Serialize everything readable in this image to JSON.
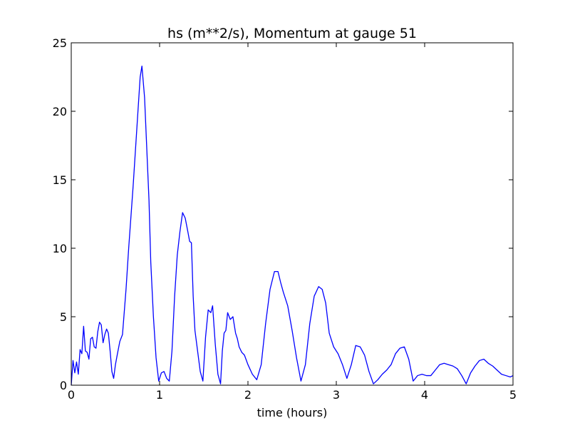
{
  "chart_data": {
    "type": "line",
    "title": "hs (m**2/s), Momentum at gauge 51",
    "xlabel": "time (hours)",
    "ylabel": "",
    "xlim": [
      0,
      5
    ],
    "ylim": [
      0,
      25
    ],
    "xticks": [
      "0",
      "1",
      "2",
      "3",
      "4",
      "5"
    ],
    "yticks": [
      "0",
      "5",
      "10",
      "15",
      "20",
      "25"
    ],
    "grid": false,
    "series": [
      {
        "color": "#0000ff",
        "style": "solid",
        "x": [
          0.0,
          0.02,
          0.04,
          0.06,
          0.08,
          0.1,
          0.12,
          0.14,
          0.16,
          0.18,
          0.2,
          0.22,
          0.24,
          0.26,
          0.28,
          0.3,
          0.32,
          0.34,
          0.36,
          0.38,
          0.4,
          0.42,
          0.44,
          0.46,
          0.48,
          0.5,
          0.52,
          0.55,
          0.58,
          0.62,
          0.65,
          0.7,
          0.75,
          0.78,
          0.8,
          0.83,
          0.85,
          0.88,
          0.9,
          0.93,
          0.96,
          0.99,
          1.02,
          1.05,
          1.08,
          1.11,
          1.14,
          1.17,
          1.2,
          1.23,
          1.26,
          1.29,
          1.32,
          1.34,
          1.36,
          1.38,
          1.4,
          1.43,
          1.46,
          1.49,
          1.52,
          1.55,
          1.58,
          1.6,
          1.63,
          1.66,
          1.69,
          1.71,
          1.73,
          1.75,
          1.77,
          1.8,
          1.83,
          1.86,
          1.88,
          1.9,
          1.93,
          1.96,
          2.0,
          2.05,
          2.1,
          2.15,
          2.2,
          2.25,
          2.3,
          2.34,
          2.37,
          2.4,
          2.45,
          2.5,
          2.55,
          2.6,
          2.65,
          2.7,
          2.75,
          2.8,
          2.84,
          2.88,
          2.92,
          2.97,
          3.02,
          3.07,
          3.12,
          3.17,
          3.22,
          3.27,
          3.32,
          3.37,
          3.42,
          3.47,
          3.52,
          3.57,
          3.62,
          3.67,
          3.72,
          3.77,
          3.82,
          3.87,
          3.92,
          3.97,
          4.02,
          4.07,
          4.12,
          4.17,
          4.22,
          4.27,
          4.32,
          4.37,
          4.42,
          4.47,
          4.52,
          4.57,
          4.62,
          4.67,
          4.72,
          4.77,
          4.82,
          4.87,
          4.92,
          4.97,
          5.0
        ],
        "y": [
          0.0,
          1.8,
          0.9,
          1.7,
          0.8,
          2.6,
          2.3,
          4.3,
          2.5,
          2.4,
          1.9,
          3.4,
          3.5,
          2.8,
          2.7,
          3.9,
          4.6,
          4.4,
          3.1,
          3.7,
          4.1,
          3.8,
          2.5,
          1.0,
          0.5,
          1.5,
          2.2,
          3.2,
          3.7,
          7.0,
          10.0,
          14.5,
          19.5,
          22.5,
          23.3,
          21.0,
          18.0,
          13.5,
          9.0,
          5.0,
          2.0,
          0.3,
          0.9,
          1.0,
          0.5,
          0.3,
          2.5,
          6.5,
          9.5,
          11.2,
          12.6,
          12.2,
          11.2,
          10.5,
          10.4,
          6.5,
          4.0,
          2.5,
          1.0,
          0.3,
          3.5,
          5.5,
          5.3,
          5.8,
          3.0,
          0.8,
          0.1,
          2.5,
          3.8,
          4.0,
          5.3,
          4.8,
          5.0,
          3.8,
          3.4,
          2.8,
          2.4,
          2.2,
          1.5,
          0.8,
          0.4,
          1.5,
          4.5,
          7.0,
          8.3,
          8.3,
          7.5,
          6.8,
          5.8,
          4.0,
          2.0,
          0.3,
          1.5,
          4.5,
          6.5,
          7.2,
          7.0,
          6.0,
          3.8,
          2.8,
          2.3,
          1.5,
          0.5,
          1.5,
          2.9,
          2.8,
          2.2,
          1.0,
          0.1,
          0.4,
          0.8,
          1.1,
          1.5,
          2.3,
          2.7,
          2.8,
          1.9,
          0.3,
          0.7,
          0.8,
          0.7,
          0.7,
          1.1,
          1.5,
          1.6,
          1.5,
          1.4,
          1.2,
          0.7,
          0.1,
          0.9,
          1.4,
          1.8,
          1.9,
          1.6,
          1.4,
          1.1,
          0.8,
          0.7,
          0.6,
          0.7
        ]
      },
      {
        "color": "#000000",
        "style": "dashed",
        "x": [
          0,
          5
        ],
        "y": [
          0,
          0
        ]
      }
    ]
  }
}
